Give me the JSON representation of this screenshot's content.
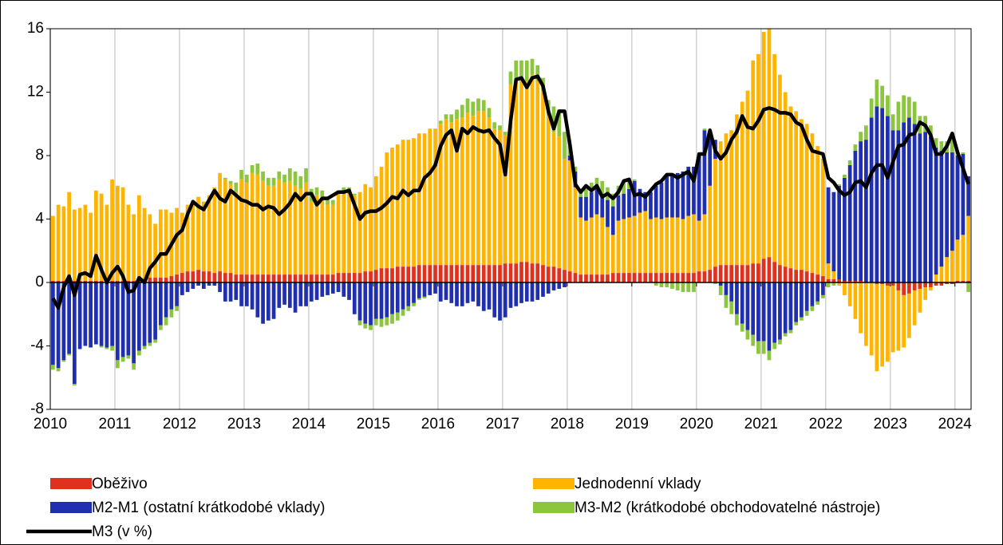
{
  "chart_data": {
    "type": "bar",
    "stacked": true,
    "legend": "bottom",
    "categories": [
      "2010",
      null,
      null,
      null,
      null,
      null,
      null,
      null,
      null,
      null,
      null,
      null,
      "2011",
      null,
      null,
      null,
      null,
      null,
      null,
      null,
      null,
      null,
      null,
      null,
      "2012",
      null,
      null,
      null,
      null,
      null,
      null,
      null,
      null,
      null,
      null,
      null,
      "2013",
      null,
      null,
      null,
      null,
      null,
      null,
      null,
      null,
      null,
      null,
      null,
      "2014",
      null,
      null,
      null,
      null,
      null,
      null,
      null,
      null,
      null,
      null,
      null,
      "2015",
      null,
      null,
      null,
      null,
      null,
      null,
      null,
      null,
      null,
      null,
      null,
      "2016",
      null,
      null,
      null,
      null,
      null,
      null,
      null,
      null,
      null,
      null,
      null,
      "2017",
      null,
      null,
      null,
      null,
      null,
      null,
      null,
      null,
      null,
      null,
      null,
      "2018",
      null,
      null,
      null,
      null,
      null,
      null,
      null,
      null,
      null,
      null,
      null,
      "2019",
      null,
      null,
      null,
      null,
      null,
      null,
      null,
      null,
      null,
      null,
      null,
      "2020",
      null,
      null,
      null,
      null,
      null,
      null,
      null,
      null,
      null,
      null,
      null,
      "2021",
      null,
      null,
      null,
      null,
      null,
      null,
      null,
      null,
      null,
      null,
      null,
      "2022",
      null,
      null,
      null,
      null,
      null,
      null,
      null,
      null,
      null,
      null,
      null,
      "2023",
      null,
      null,
      null,
      null,
      null,
      null,
      null,
      null,
      null,
      null,
      null,
      "2024",
      null,
      null
    ],
    "ylim": [
      -8,
      16
    ],
    "yticks": [
      -8,
      -4,
      0,
      4,
      8,
      12,
      16
    ],
    "series": [
      {
        "name": "Oběživo",
        "color": "#e0301e",
        "type": "bar",
        "values": [
          0.1,
          0.1,
          0.1,
          0.1,
          0.1,
          0.1,
          0.1,
          0.1,
          0.1,
          0.1,
          0.1,
          0.1,
          0.1,
          0.1,
          0.1,
          0.1,
          0.2,
          0.2,
          0.3,
          0.3,
          0.3,
          0.3,
          0.4,
          0.5,
          0.6,
          0.7,
          0.7,
          0.8,
          0.7,
          0.7,
          0.6,
          0.7,
          0.6,
          0.6,
          0.5,
          0.5,
          0.5,
          0.5,
          0.5,
          0.5,
          0.5,
          0.5,
          0.5,
          0.5,
          0.5,
          0.5,
          0.5,
          0.5,
          0.5,
          0.5,
          0.5,
          0.5,
          0.5,
          0.6,
          0.6,
          0.6,
          0.6,
          0.6,
          0.7,
          0.7,
          0.8,
          0.9,
          0.9,
          0.9,
          1.0,
          1.0,
          1.0,
          1.0,
          1.1,
          1.1,
          1.1,
          1.1,
          1.1,
          1.1,
          1.1,
          1.1,
          1.1,
          1.1,
          1.1,
          1.1,
          1.1,
          1.1,
          1.1,
          1.1,
          1.2,
          1.2,
          1.2,
          1.3,
          1.3,
          1.2,
          1.2,
          1.1,
          1.0,
          1.0,
          0.9,
          0.8,
          0.7,
          0.6,
          0.5,
          0.5,
          0.5,
          0.5,
          0.5,
          0.5,
          0.6,
          0.6,
          0.6,
          0.6,
          0.6,
          0.6,
          0.6,
          0.6,
          0.6,
          0.6,
          0.6,
          0.6,
          0.6,
          0.6,
          0.6,
          0.6,
          0.7,
          0.7,
          0.8,
          1.0,
          1.1,
          1.1,
          1.1,
          1.1,
          1.1,
          1.1,
          1.2,
          1.2,
          1.5,
          1.6,
          1.3,
          1.1,
          1.0,
          0.9,
          0.8,
          0.8,
          0.7,
          0.6,
          0.5,
          0.4,
          0.2,
          0.2,
          0.2,
          0.1,
          0.1,
          0.1,
          0.1,
          0,
          0,
          -0.1,
          -0.1,
          -0.2,
          -0.2,
          -0.5,
          -0.8,
          -0.7,
          -0.5,
          -0.4,
          -0.3,
          -0.3,
          -0.2,
          -0.2,
          -0.1,
          -0.1,
          0.1,
          0.1,
          0.1
        ]
      },
      {
        "name": "Jednodenní vklady",
        "color": "#ffb400",
        "type": "bar",
        "values": [
          4.1,
          4.8,
          4.7,
          5.6,
          4.5,
          4.6,
          4.8,
          4.3,
          5.7,
          5.5,
          4.8,
          6.4,
          6.0,
          5.9,
          4.8,
          4.2,
          5.3,
          4.5,
          4.0,
          3.4,
          4.3,
          4.3,
          4.0,
          4.2,
          3.8,
          4.2,
          4.4,
          4.6,
          4.4,
          4.8,
          5.4,
          6.2,
          5.9,
          5.6,
          5.2,
          6.0,
          5.8,
          6.4,
          6.3,
          5.9,
          5.6,
          5.6,
          6.0,
          5.8,
          5.9,
          5.6,
          5.4,
          5.8,
          4.6,
          5.0,
          4.9,
          4.4,
          4.4,
          5.0,
          5.2,
          5.2,
          4.9,
          5.1,
          5.5,
          5.3,
          5.9,
          6.4,
          7.3,
          7.6,
          7.7,
          8.0,
          8.0,
          8.1,
          8.3,
          8.3,
          8.6,
          8.6,
          8.9,
          9.2,
          9.0,
          9.2,
          9.3,
          9.6,
          9.4,
          9.7,
          9.7,
          9.3,
          8.6,
          8.5,
          8.1,
          11.3,
          11.6,
          11.4,
          11.4,
          11.9,
          11.5,
          11.0,
          9.5,
          8.5,
          8.3,
          7.0,
          7.0,
          5.4,
          3.6,
          3.4,
          3.6,
          3.8,
          3.6,
          3.0,
          2.4,
          3.3,
          3.4,
          3.5,
          3.6,
          3.8,
          3.9,
          3.4,
          3.5,
          3.4,
          3.5,
          3.5,
          3.5,
          3.4,
          3.6,
          3.7,
          3.2,
          3.6,
          5.3,
          6.8,
          7.8,
          8.3,
          8.5,
          9.5,
          10.3,
          11.0,
          12.8,
          13.2,
          14.3,
          14.4,
          13.1,
          12.0,
          11.0,
          10.2,
          10.0,
          9.5,
          9.3,
          8.8,
          8.1,
          7.4,
          1.0,
          0.5,
          -0.2,
          -0.8,
          -1.5,
          -2.3,
          -3.2,
          -4.0,
          -4.6,
          -5.5,
          -5.2,
          -4.8,
          -4.2,
          -3.8,
          -3.3,
          -2.8,
          -2.2,
          -1.5,
          -0.8,
          -0.2,
          0.5,
          1.0,
          1.6,
          2.0,
          2.6,
          2.9,
          4.1
        ]
      },
      {
        "name": "M2-M1 (ostatní krátkodobé vklady)",
        "color": "#1f2fb0",
        "type": "bar",
        "values": [
          -5.2,
          -5.4,
          -4.9,
          -4.5,
          -6.4,
          -4.2,
          -4.0,
          -4.1,
          -3.9,
          -4.0,
          -4.1,
          -4.0,
          -4.9,
          -4.7,
          -4.6,
          -5.1,
          -4.3,
          -4.0,
          -3.8,
          -3.6,
          -2.7,
          -2.2,
          -1.7,
          -1.5,
          -0.8,
          -0.6,
          -0.4,
          -0.2,
          -0.4,
          -0.2,
          -0.2,
          -0.6,
          -1.2,
          -1.2,
          -1.1,
          -1.5,
          -1.5,
          -1.7,
          -2.2,
          -2.6,
          -2.4,
          -2.3,
          -1.6,
          -1.4,
          -1.6,
          -1.9,
          -1.5,
          -1.5,
          -1.2,
          -1.1,
          -0.9,
          -0.8,
          -0.7,
          -0.6,
          -0.9,
          -1.1,
          -2.0,
          -2.4,
          -2.6,
          -2.7,
          -2.3,
          -2.3,
          -2.2,
          -2.0,
          -1.9,
          -1.7,
          -1.5,
          -1.3,
          -1.0,
          -0.9,
          -0.8,
          -0.7,
          -1.2,
          -1.1,
          -1.3,
          -1.5,
          -1.5,
          -1.3,
          -1.2,
          -1.5,
          -1.8,
          -1.7,
          -2.2,
          -2.4,
          -2.2,
          -1.6,
          -1.5,
          -1.3,
          -1.2,
          -1.2,
          -1.1,
          -0.9,
          -0.7,
          -0.5,
          -0.4,
          -0.3,
          0.3,
          1.0,
          1.3,
          1.5,
          1.6,
          1.7,
          1.5,
          1.7,
          1.8,
          1.6,
          1.6,
          1.8,
          2.2,
          1.5,
          1.2,
          1.7,
          2.0,
          2.3,
          2.6,
          2.7,
          2.8,
          3.0,
          3.1,
          3.0,
          4.2,
          5.3,
          3.2,
          1.2,
          -0.2,
          -0.8,
          -1.2,
          -2.0,
          -2.6,
          -3.0,
          -3.3,
          -3.7,
          -3.7,
          -4.3,
          -3.8,
          -3.6,
          -3.2,
          -3.0,
          -2.5,
          -2.2,
          -1.8,
          -1.5,
          -1.2,
          -0.8,
          4.8,
          5.0,
          5.9,
          6.5,
          7.3,
          8.2,
          8.8,
          9.0,
          10.4,
          11.1,
          11.0,
          10.5,
          9.6,
          9.6,
          10.1,
          10.4,
          10.0,
          9.4,
          9.5,
          9.2,
          8.0,
          7.3,
          6.6,
          6.2,
          5.3,
          5.1,
          2.5
        ]
      },
      {
        "name": "M3-M2 (krátkodobé obchodovatelné nástroje)",
        "color": "#8cc63e",
        "type": "bar",
        "values": [
          -0.3,
          -0.2,
          -0.1,
          -0.1,
          -0.1,
          0,
          0,
          0,
          0,
          -0.1,
          -0.1,
          -0.3,
          -0.5,
          -0.3,
          -0.2,
          -0.4,
          -0.3,
          -0.2,
          -0.2,
          -0.2,
          -0.3,
          -0.5,
          -0.5,
          -0.3,
          0,
          0,
          0,
          0,
          0,
          0,
          0,
          0,
          0.1,
          0.2,
          0.6,
          0.6,
          0.5,
          0.5,
          0.7,
          0.6,
          0.5,
          0.5,
          0.5,
          0.5,
          0.8,
          0.9,
          0.8,
          0.9,
          0.8,
          0.5,
          0.4,
          0.3,
          0.3,
          0.2,
          0.2,
          0.2,
          0.1,
          -0.3,
          -0.3,
          -0.3,
          -0.4,
          -0.5,
          -0.5,
          -0.6,
          -0.5,
          -0.4,
          -0.3,
          -0.2,
          -0.1,
          -0.1,
          0,
          0,
          0.2,
          0.3,
          0.5,
          0.6,
          0.8,
          0.9,
          0.9,
          0.8,
          0.7,
          0.6,
          0.4,
          0.3,
          0.2,
          0.8,
          1.2,
          1.3,
          1.3,
          1.0,
          1.0,
          0.8,
          1.0,
          1.6,
          1.7,
          1.7,
          0.6,
          0.3,
          0.4,
          0.5,
          0.6,
          0.6,
          0.8,
          0.8,
          0.8,
          0.6,
          0.7,
          0.6,
          0.1,
          0,
          0,
          0,
          -0.2,
          -0.3,
          -0.3,
          -0.4,
          -0.5,
          -0.6,
          -0.6,
          -0.6,
          0.1,
          0.1,
          0,
          -0.1,
          -0.6,
          -0.8,
          -0.8,
          -0.7,
          -0.5,
          -0.6,
          -0.7,
          -0.8,
          -0.8,
          -0.6,
          -0.4,
          -0.3,
          -0.2,
          -0.2,
          -0.2,
          -0.2,
          -0.3,
          -0.3,
          -0.2,
          -0.2,
          -0.3,
          -0.2,
          0.1,
          0.2,
          0.3,
          0.4,
          0.6,
          0.9,
          1.2,
          1.7,
          1.4,
          1.3,
          1.0,
          1.8,
          1.7,
          1.3,
          1.4,
          1.1,
          1.0,
          0.7,
          0.6,
          0.6,
          0.7,
          0.8,
          0.2,
          0.1,
          -0.6
        ]
      },
      {
        "name": "M3 (v %)",
        "color": "#000000",
        "type": "line",
        "values": [
          -1.0,
          -1.6,
          -0.3,
          0.4,
          -0.8,
          0.5,
          0.6,
          0.4,
          1.7,
          0.8,
          0.0,
          0.6,
          1.0,
          0.4,
          -0.6,
          -0.5,
          0.3,
          0.0,
          0.9,
          1.3,
          1.8,
          1.8,
          2.4,
          3.0,
          3.3,
          4.3,
          5.1,
          4.8,
          4.6,
          5.2,
          5.8,
          5.3,
          5.1,
          5.8,
          5.5,
          5.2,
          5.1,
          4.9,
          4.9,
          4.6,
          4.8,
          4.7,
          4.3,
          4.6,
          5.0,
          5.6,
          5.2,
          5.6,
          5.6,
          4.9,
          5.3,
          5.3,
          5.5,
          5.7,
          5.7,
          5.8,
          4.9,
          4.0,
          4.4,
          4.5,
          4.5,
          4.7,
          5.0,
          5.4,
          5.3,
          5.8,
          5.5,
          5.8,
          5.8,
          6.6,
          6.9,
          7.4,
          8.6,
          9.3,
          9.6,
          8.3,
          9.7,
          9.4,
          9.8,
          9.6,
          9.5,
          9.6,
          9.1,
          8.7,
          6.8,
          10.2,
          12.8,
          12.9,
          12.3,
          12.9,
          13.0,
          12.4,
          10.8,
          9.7,
          10.8,
          10.8,
          8.7,
          6.2,
          5.7,
          6.1,
          5.8,
          6.1,
          5.4,
          5.6,
          5.3,
          5.7,
          6.4,
          6.5,
          5.5,
          5.6,
          5.4,
          5.8,
          6.2,
          6.4,
          6.8,
          6.8,
          6.6,
          6.8,
          7.0,
          6.4,
          8.1,
          8.1,
          9.6,
          8.3,
          7.8,
          8.2,
          9.0,
          9.5,
          10.5,
          9.8,
          9.7,
          10.2,
          10.9,
          11.0,
          10.9,
          10.7,
          10.7,
          10.6,
          10.1,
          9.9,
          9.0,
          8.3,
          8.2,
          8.1,
          6.6,
          6.3,
          5.8,
          5.5,
          5.7,
          6.3,
          6.4,
          6.0,
          6.9,
          7.4,
          7.4,
          6.6,
          7.6,
          8.6,
          8.7,
          9.3,
          9.4,
          10.1,
          9.9,
          9.3,
          8.1,
          8.1,
          8.6,
          9.4,
          8.2,
          7.2,
          6.2
        ]
      }
    ]
  }
}
